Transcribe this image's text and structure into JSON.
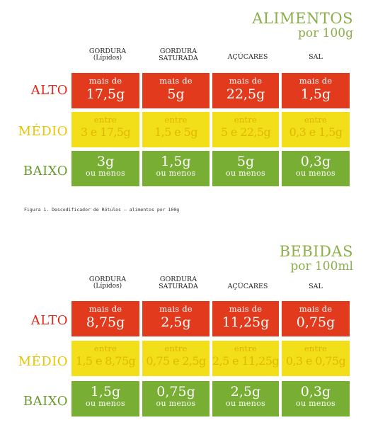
{
  "foods": {
    "title_line1": "ALIMENTOS",
    "title_line2": "por 100g",
    "columns": [
      {
        "line1": "GORDURA",
        "line2": "(Lípidos)"
      },
      {
        "line1": "GORDURA",
        "line2": "SATURADA"
      },
      {
        "line1": "AÇÚCARES",
        "line2": ""
      },
      {
        "line1": "SAL",
        "line2": ""
      }
    ],
    "rows": {
      "alto": {
        "label": "ALTO",
        "top_text": "mais de",
        "values": [
          "17,5g",
          "5g",
          "22,5g",
          "1,5g"
        ]
      },
      "medio": {
        "label": "MÉDIO",
        "top_text": "entre",
        "values": [
          "3 e 17,5g",
          "1,5 e 5g",
          "5 e 22,5g",
          "0,3 e 1,5g"
        ]
      },
      "baixo": {
        "label": "BAIXO",
        "bottom_text": "ou menos",
        "values": [
          "3g",
          "1,5g",
          "5g",
          "0,3g"
        ]
      }
    }
  },
  "caption": "Figura 1. Descodificador de Rótulos – alimentos por 100g",
  "drinks": {
    "title_line1": "BEBIDAS",
    "title_line2": "por 100ml",
    "columns": [
      {
        "line1": "GORDURA",
        "line2": "(Lípidos)"
      },
      {
        "line1": "GORDURA",
        "line2": "SATURADA"
      },
      {
        "line1": "AÇÚCARES",
        "line2": ""
      },
      {
        "line1": "SAL",
        "line2": ""
      }
    ],
    "rows": {
      "alto": {
        "label": "ALTO",
        "top_text": "mais de",
        "values": [
          "8,75g",
          "2,5g",
          "11,25g",
          "0,75g"
        ]
      },
      "medio": {
        "label": "MÉDIO",
        "top_text": "entre",
        "values": [
          "1,5 e 8,75g",
          "0,75 e 2,5g",
          "2,5 e 11,25g",
          "0,3 e 0,75g"
        ]
      },
      "baixo": {
        "label": "BAIXO",
        "bottom_text": "ou menos",
        "values": [
          "1,5g",
          "0,75g",
          "2,5g",
          "0,3g"
        ]
      }
    }
  },
  "colors": {
    "alto": "#e23a1c",
    "medio": "#f3de1a",
    "baixo": "#79ae34",
    "title": "#8bb04a"
  }
}
